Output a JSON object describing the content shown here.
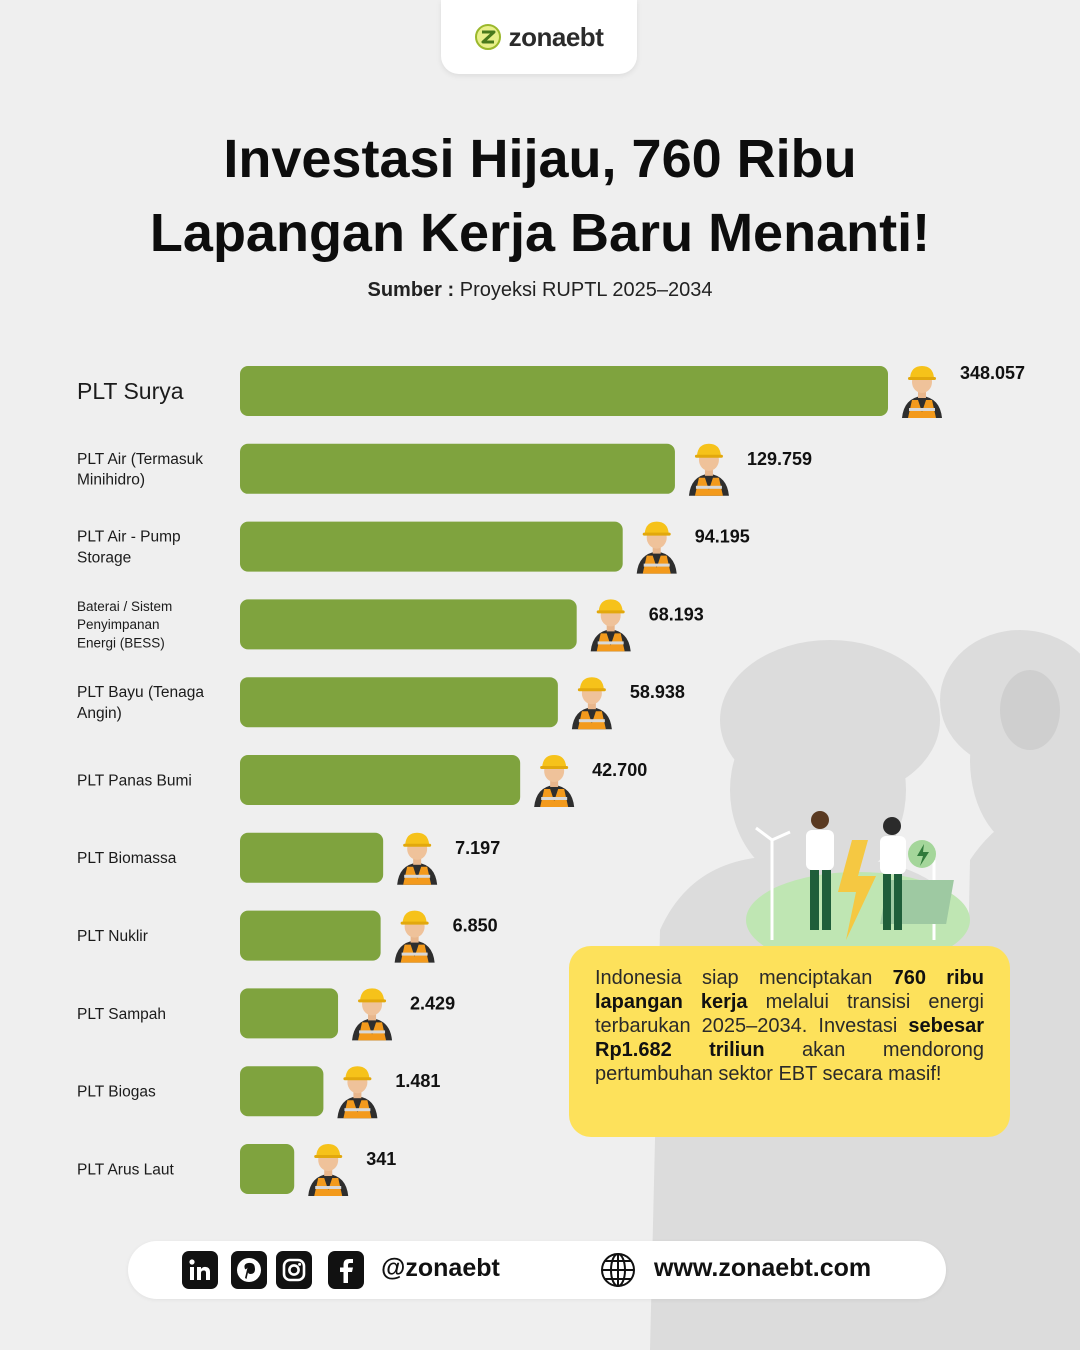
{
  "brand": {
    "logo_text": "zonaebt"
  },
  "title": {
    "line1": "Investasi Hijau, 760 Ribu",
    "line2": "Lapangan Kerja Baru Menanti!"
  },
  "source": {
    "label": "Sumber :",
    "text": " Proyeksi RUPTL 2025–2034"
  },
  "chart_data": {
    "type": "bar",
    "orientation": "horizontal",
    "categories": [
      "PLT Surya",
      "PLT Air (Termasuk Minihidro)",
      "PLT Air - Pump Storage",
      "Baterai / Sistem Penyimpanan Energi (BESS)",
      "PLT Bayu (Tenaga Angin)",
      "PLT Panas Bumi",
      "PLT Biomassa",
      "PLT Nuklir",
      "PLT Sampah",
      "PLT Biogas",
      "PLT Arus Laut"
    ],
    "category_lines": [
      [
        "PLT Surya"
      ],
      [
        "PLT Air (Termasuk",
        "Minihidro)"
      ],
      [
        "PLT Air - Pump",
        "Storage"
      ],
      [
        "Baterai / Sistem",
        "Penyimpanan",
        "Energi (BESS)"
      ],
      [
        "PLT Bayu (Tenaga",
        "Angin)"
      ],
      [
        "PLT Panas Bumi"
      ],
      [
        "PLT Biomassa"
      ],
      [
        "PLT Nuklir"
      ],
      [
        "PLT Sampah"
      ],
      [
        "PLT Biogas"
      ],
      [
        "PLT Arus Laut"
      ]
    ],
    "values": [
      348057,
      129759,
      94195,
      68193,
      58938,
      42700,
      7197,
      6850,
      2429,
      1481,
      341
    ],
    "value_labels": [
      "348.057",
      "129.759",
      "94.195",
      "68.193",
      "58.938",
      "42.700",
      "7.197",
      "6.850",
      "2.429",
      "1.481",
      "341"
    ],
    "bar_color": "#7fa33e",
    "marker_icon": "construction-worker-icon",
    "grid": false
  },
  "callout": {
    "t1": "Indonesia siap menciptakan ",
    "b1": "760 ribu lapangan kerja",
    "t2": " melalui transisi energi terbarukan 2025–2034. Investasi ",
    "b2": "sebesar Rp1.682 triliun",
    "t3": " akan mendorong pertumbuhan sektor EBT secara masif!"
  },
  "footer": {
    "social_icons": [
      "linkedin-icon",
      "pinterest-icon",
      "instagram-icon",
      "facebook-icon"
    ],
    "handle": "@zonaebt",
    "website_icon": "globe-icon",
    "website": "www.zonaebt.com"
  },
  "colors": {
    "accent": "#7fa33e",
    "callout": "#fde15b",
    "background": "#efefef"
  }
}
